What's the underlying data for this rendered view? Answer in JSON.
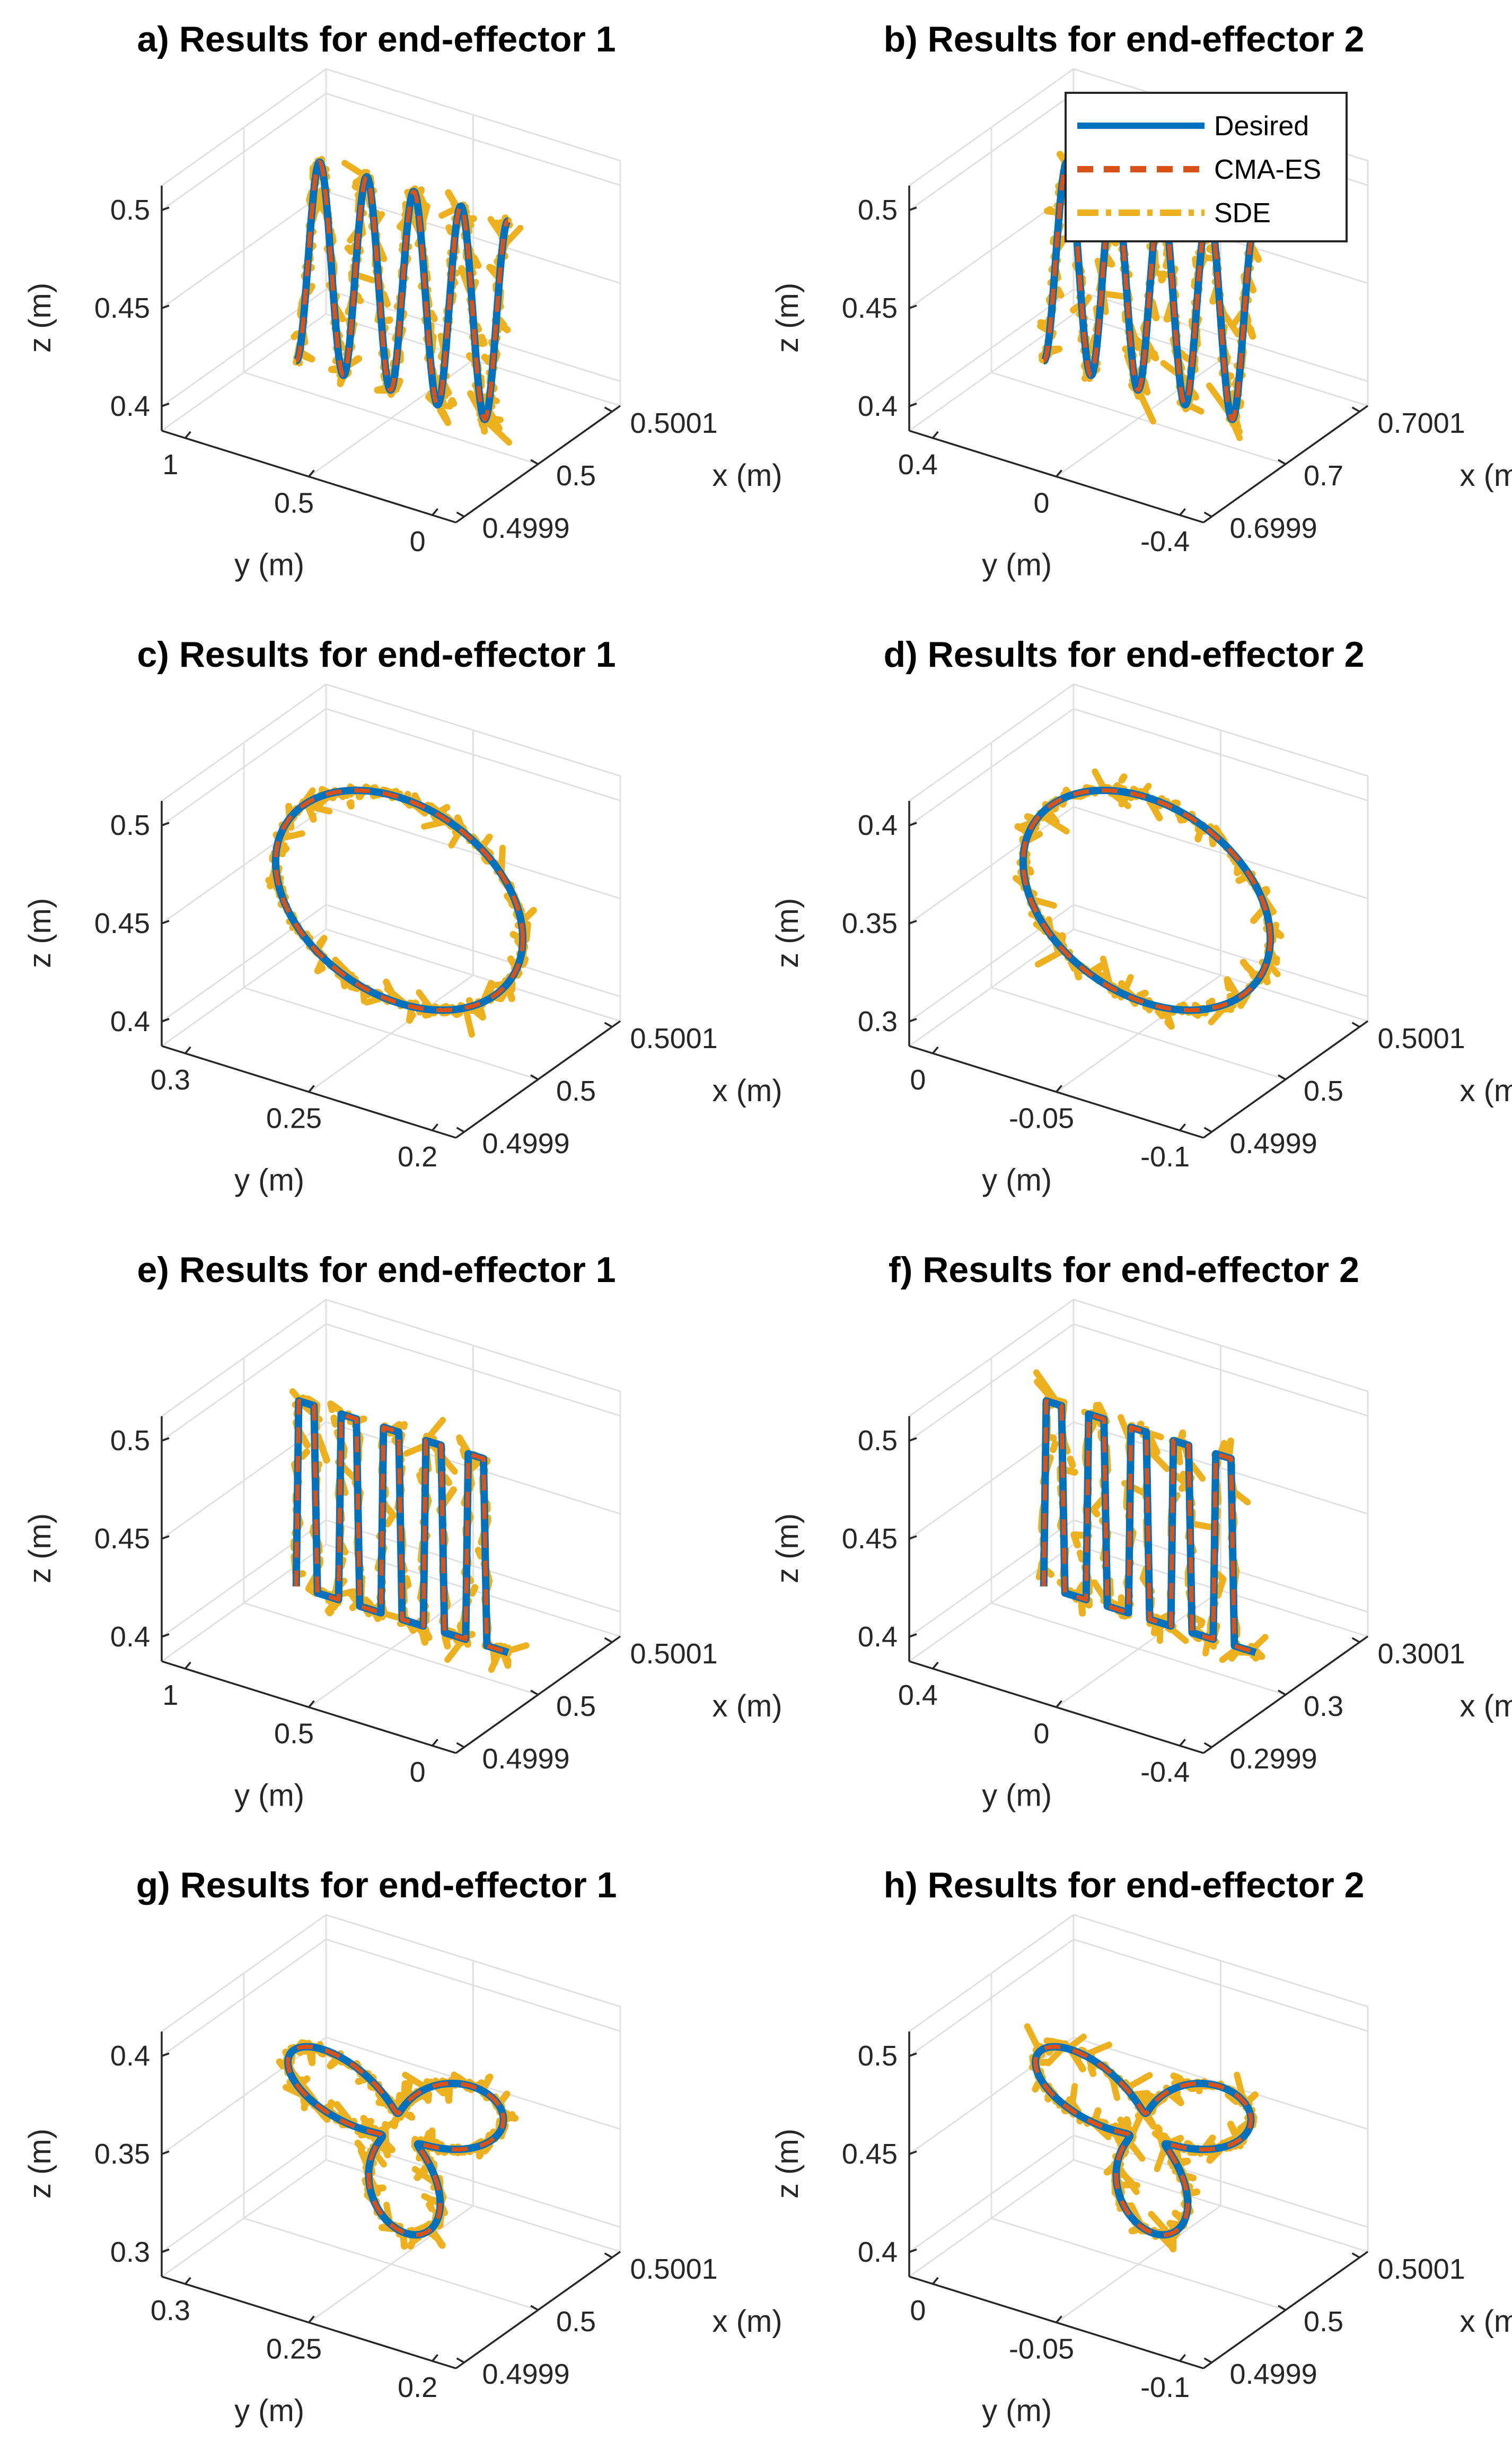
{
  "colors": {
    "desired": "#0072BD",
    "cmaes": "#D95319",
    "sde": "#EDB120",
    "grid": "#E0E0E0",
    "axis": "#262626"
  },
  "legend": {
    "entries": [
      {
        "label": "Desired",
        "style": "solid",
        "color": "#0072BD"
      },
      {
        "label": "CMA-ES",
        "style": "dashed",
        "color": "#D95319"
      },
      {
        "label": "SDE",
        "style": "dashdot",
        "color": "#EDB120"
      }
    ],
    "placement": "top-right of panel b"
  },
  "chart_data": [
    {
      "id": "a",
      "type": "line3d",
      "title": "a) Results for end-effector 1",
      "shape": "sine",
      "xlabel": "x (m)",
      "ylabel": "y (m)",
      "zlabel": "z (m)",
      "xticks": [
        "0.4999",
        "0.5",
        "0.5001"
      ],
      "yticks": [
        "1",
        "0.5",
        "0"
      ],
      "zticks": [
        "0.4",
        "0.45",
        "0.5"
      ],
      "xlim": [
        0.4999,
        0.5001
      ],
      "ylim": [
        -0.2,
        1.0
      ],
      "zlim": [
        0.4,
        0.5
      ],
      "series": [
        {
          "name": "Desired"
        },
        {
          "name": "CMA-ES"
        },
        {
          "name": "SDE"
        }
      ]
    },
    {
      "id": "b",
      "type": "line3d",
      "title": "b) Results for end-effector 2",
      "shape": "sine",
      "xlabel": "x (m)",
      "ylabel": "y (m)",
      "zlabel": "z (m)",
      "xticks": [
        "0.6999",
        "0.7",
        "0.7001"
      ],
      "yticks": [
        "0.4",
        "0",
        "-0.4"
      ],
      "zticks": [
        "0.4",
        "0.45",
        "0.5"
      ],
      "xlim": [
        0.6999,
        0.7001
      ],
      "ylim": [
        -0.6,
        0.4
      ],
      "zlim": [
        0.4,
        0.5
      ],
      "series": [
        {
          "name": "Desired"
        },
        {
          "name": "CMA-ES"
        },
        {
          "name": "SDE"
        }
      ]
    },
    {
      "id": "c",
      "type": "line3d",
      "title": "c) Results for end-effector 1",
      "shape": "circle",
      "xlabel": "x (m)",
      "ylabel": "y (m)",
      "zlabel": "z (m)",
      "xticks": [
        "0.4999",
        "0.5",
        "0.5001"
      ],
      "yticks": [
        "0.3",
        "0.25",
        "0.2"
      ],
      "zticks": [
        "0.4",
        "0.45",
        "0.5"
      ],
      "xlim": [
        0.4999,
        0.5001
      ],
      "ylim": [
        0.2,
        0.3
      ],
      "zlim": [
        0.4,
        0.5
      ],
      "series": [
        {
          "name": "Desired"
        },
        {
          "name": "CMA-ES"
        },
        {
          "name": "SDE"
        }
      ]
    },
    {
      "id": "d",
      "type": "line3d",
      "title": "d) Results for end-effector 2",
      "shape": "circle",
      "xlabel": "x (m)",
      "ylabel": "y (m)",
      "zlabel": "z (m)",
      "xticks": [
        "0.4999",
        "0.5",
        "0.5001"
      ],
      "yticks": [
        "0",
        "-0.05",
        "-0.1"
      ],
      "zticks": [
        "0.3",
        "0.35",
        "0.4"
      ],
      "xlim": [
        0.4999,
        0.5001
      ],
      "ylim": [
        -0.1,
        0.0
      ],
      "zlim": [
        0.3,
        0.4
      ],
      "series": [
        {
          "name": "Desired"
        },
        {
          "name": "CMA-ES"
        },
        {
          "name": "SDE"
        }
      ]
    },
    {
      "id": "e",
      "type": "line3d",
      "title": "e) Results for end-effector 1",
      "shape": "square",
      "xlabel": "x (m)",
      "ylabel": "y (m)",
      "zlabel": "z (m)",
      "xticks": [
        "0.4999",
        "0.5",
        "0.5001"
      ],
      "yticks": [
        "1",
        "0.5",
        "0"
      ],
      "zticks": [
        "0.4",
        "0.45",
        "0.5"
      ],
      "xlim": [
        0.4999,
        0.5001
      ],
      "ylim": [
        -0.2,
        1.0
      ],
      "zlim": [
        0.4,
        0.5
      ],
      "series": [
        {
          "name": "Desired"
        },
        {
          "name": "CMA-ES"
        },
        {
          "name": "SDE"
        }
      ]
    },
    {
      "id": "f",
      "type": "line3d",
      "title": "f) Results for end-effector 2",
      "shape": "square",
      "xlabel": "x (m)",
      "ylabel": "y (m)",
      "zlabel": "z (m)",
      "xticks": [
        "0.2999",
        "0.3",
        "0.3001"
      ],
      "yticks": [
        "0.4",
        "0",
        "-0.4"
      ],
      "zticks": [
        "0.4",
        "0.45",
        "0.5"
      ],
      "xlim": [
        0.2999,
        0.3001
      ],
      "ylim": [
        -0.6,
        0.4
      ],
      "zlim": [
        0.4,
        0.5
      ],
      "series": [
        {
          "name": "Desired"
        },
        {
          "name": "CMA-ES"
        },
        {
          "name": "SDE"
        }
      ]
    },
    {
      "id": "g",
      "type": "line3d",
      "title": "g) Results for end-effector 1",
      "shape": "trefoil",
      "xlabel": "x (m)",
      "ylabel": "y (m)",
      "zlabel": "z (m)",
      "xticks": [
        "0.4999",
        "0.5",
        "0.5001"
      ],
      "yticks": [
        "0.3",
        "0.25",
        "0.2"
      ],
      "zticks": [
        "0.3",
        "0.35",
        "0.4"
      ],
      "xlim": [
        0.4999,
        0.5001
      ],
      "ylim": [
        0.2,
        0.3
      ],
      "zlim": [
        0.3,
        0.4
      ],
      "series": [
        {
          "name": "Desired"
        },
        {
          "name": "CMA-ES"
        },
        {
          "name": "SDE"
        }
      ]
    },
    {
      "id": "h",
      "type": "line3d",
      "title": "h) Results for end-effector 2",
      "shape": "trefoil",
      "xlabel": "x (m)",
      "ylabel": "y (m)",
      "zlabel": "z (m)",
      "xticks": [
        "0.4999",
        "0.5",
        "0.5001"
      ],
      "yticks": [
        "0",
        "-0.05",
        "-0.1"
      ],
      "zticks": [
        "0.4",
        "0.45",
        "0.5"
      ],
      "xlim": [
        0.4999,
        0.5001
      ],
      "ylim": [
        -0.1,
        0.0
      ],
      "zlim": [
        0.4,
        0.5
      ],
      "series": [
        {
          "name": "Desired"
        },
        {
          "name": "CMA-ES"
        },
        {
          "name": "SDE"
        }
      ]
    }
  ]
}
